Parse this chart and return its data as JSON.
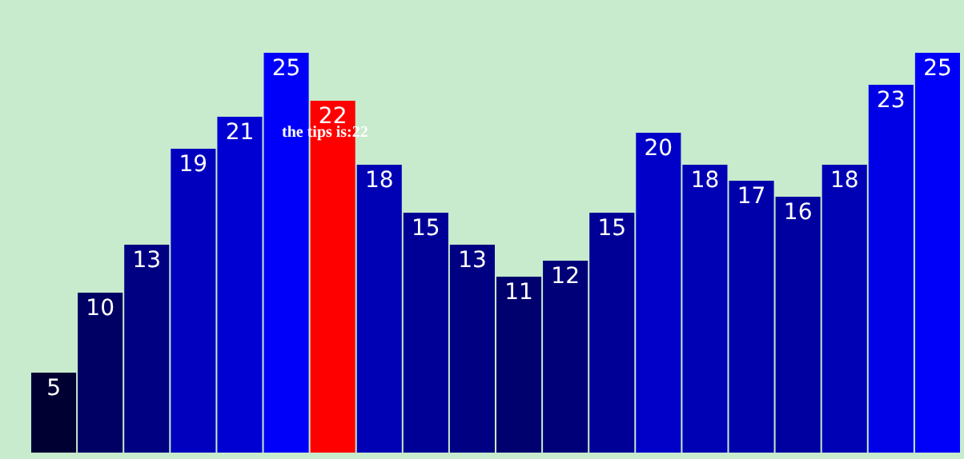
{
  "chart_data": {
    "type": "bar",
    "categories": [
      null,
      null,
      null,
      null,
      null,
      null,
      null,
      null,
      null,
      null,
      null,
      null,
      null,
      null,
      null,
      null,
      null,
      null,
      null,
      null
    ],
    "values": [
      5,
      10,
      13,
      19,
      21,
      25,
      22,
      18,
      15,
      13,
      11,
      12,
      15,
      20,
      18,
      17,
      16,
      18,
      23,
      25
    ],
    "colors": [
      "#000032",
      "#000064",
      "#000082",
      "#0000be",
      "#0000d2",
      "#0000fa",
      "#ff0000",
      "#0000b4",
      "#000096",
      "#000082",
      "#00006e",
      "#000078",
      "#000096",
      "#0000c8",
      "#0000b4",
      "#0000aa",
      "#0000a0",
      "#0000b4",
      "#0000e6",
      "#0000fa"
    ],
    "data_labels": true,
    "annotations": [
      "the tips is:22"
    ]
  }
}
